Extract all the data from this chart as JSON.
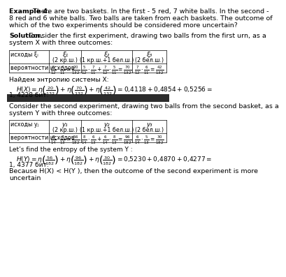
{
  "bg_color": "#ffffff",
  "separator_color": "#2c2c2c",
  "text_color": "#000000",
  "title_bold": "Example 4.",
  "title_text": " There are two baskets. In the first - 5 red, 7 white balls. In the second -\n8 red and 6 white balls. Two balls are taken from each baskets. The outcome of\nwhich of the two experiments should be considered more uncertain?",
  "solution_bold": "Solution.",
  "solution_text": " Consider the first experiment, drawing two balls from the first urn, as a\nsystem X with three outcomes:",
  "table1_header_col0": "исходы ξᵢ",
  "table1_header_col1": "ξ₁\n(2 кр.ш.)",
  "table1_header_col2": "ξ₂\n(1 кр.ш.+1 бел.ш.)",
  "table1_header_col3": "ξ₃\n(2 бел.ш.)",
  "table1_prob_col0": "вероятности исходов",
  "table1_prob_col1": "$\\frac{5}{12}\\cdot\\frac{4}{11}=\\frac{20}{132}$",
  "table1_prob_col2": "$\\frac{5}{12}\\cdot\\frac{7}{11}+\\frac{7}{12}\\cdot\\frac{5}{11}=\\frac{70}{132}$",
  "table1_prob_col3": "$\\frac{7}{12}\\cdot\\frac{6}{11}=\\frac{42}{132}$",
  "entropy1_label": "Найдем энтропию системы X:",
  "entropy1_formula": "$H(X) = \\eta\\left(\\frac{20}{132}\\right) + \\eta\\left(\\frac{70}{132}\\right) + \\eta\\left(\\frac{42}{132}\\right) = 0{,}4118 + 0{,}4854 + 0{,}5256 =$",
  "entropy1_value": "1, 4228 бит.",
  "solution2_text": "Consider the second experiment, drawing two balls from the second basket, as a\nsystem Y with three outcomes:",
  "table2_header_col0": "исходы yⱼ",
  "table2_header_col1": "y₁\n(2 кр.ш.)",
  "table2_header_col2": "y₂\n(1 кр.ш.+1 бел.ш.)",
  "table2_header_col3": "y₃\n(2 бел.ш.)",
  "table2_prob_col0": "вероятности исходов",
  "table2_prob_col1": "$\\frac{8}{14}\\cdot\\frac{7}{13}=\\frac{56}{182}$",
  "table2_prob_col2": "$\\frac{8}{14}\\cdot\\frac{6}{13}+\\frac{6}{14}\\cdot\\frac{8}{13}=\\frac{96}{182}$",
  "table2_prob_col3": "$\\frac{6}{14}\\cdot\\frac{5}{13}=\\frac{30}{182}$",
  "entropy2_label": "Let’s find the entropy of the system Y :",
  "entropy2_formula": "$H(Y) = \\eta\\left(\\frac{56}{182}\\right) + \\eta\\left(\\frac{96}{182}\\right) + \\eta\\left(\\frac{30}{182}\\right) = 0{,}5230 + 0{,}4870 + 0{,}4277 =$",
  "entropy2_value": "1, 4377 бит.",
  "conclusion": "Because H(X) < H(Y ), then the outcome of the second experiment is more\nuncertain"
}
